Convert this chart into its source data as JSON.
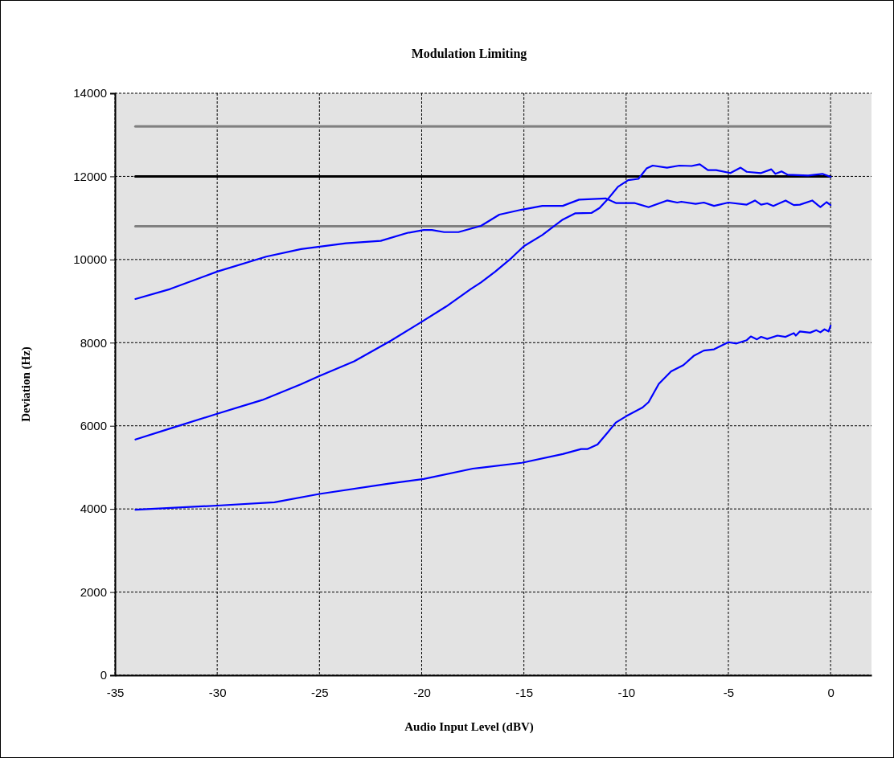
{
  "chart_data": {
    "type": "line",
    "title": "Modulation Limiting",
    "xlabel": "Audio Input Level (dBV)",
    "ylabel": "Deviation (Hz)",
    "xlim": [
      -35,
      2
    ],
    "xticks": [
      -35,
      -30,
      -25,
      -20,
      -15,
      -10,
      -5,
      0
    ],
    "ylim": [
      0,
      14000
    ],
    "yticks": [
      0,
      2000,
      4000,
      6000,
      8000,
      10000,
      12000,
      14000
    ],
    "grid": true,
    "marker": "none",
    "line_style": "solid",
    "series": [
      {
        "color": "#808080",
        "x": [
          -34,
          0
        ],
        "values": [
          13200,
          13200
        ]
      },
      {
        "color": "#000000",
        "x": [
          -34,
          0
        ],
        "values": [
          12000,
          12000
        ]
      },
      {
        "color": "#808080",
        "x": [
          -34,
          0
        ],
        "values": [
          10800,
          10800
        ]
      },
      {
        "color": "#0000ff",
        "x": [
          -34,
          -32.3,
          -30,
          -27.6,
          -25.9,
          -23.7,
          -22,
          -20.7,
          -19.9,
          -19.5,
          -18.9,
          -18.2,
          -17.1,
          -16.2,
          -15.1,
          -14.1,
          -13.1,
          -12.3,
          -11,
          -10.5,
          -9.6,
          -8.9,
          -8,
          -7.5,
          -7.3,
          -6.6,
          -6.2,
          -5.7,
          -5,
          -4.1,
          -3.7,
          -3.4,
          -3.1,
          -2.8,
          -2.2,
          -1.8,
          -1.5,
          -0.9,
          -0.5,
          -0.2,
          0
        ],
        "values": [
          9050,
          9290,
          9710,
          10070,
          10250,
          10390,
          10450,
          10640,
          10710,
          10710,
          10660,
          10660,
          10810,
          11080,
          11200,
          11290,
          11290,
          11440,
          11470,
          11360,
          11360,
          11260,
          11420,
          11370,
          11390,
          11340,
          11370,
          11290,
          11370,
          11320,
          11420,
          11320,
          11350,
          11290,
          11420,
          11310,
          11320,
          11420,
          11260,
          11380,
          11310
        ]
      },
      {
        "color": "#0000ff",
        "x": [
          -34,
          -32.4,
          -30,
          -27.8,
          -25.9,
          -25,
          -23.3,
          -21.5,
          -20,
          -18.8,
          -17.6,
          -17.1,
          -16.4,
          -15.6,
          -15,
          -14.1,
          -13.1,
          -12.5,
          -11.7,
          -11.3,
          -10.9,
          -10.4,
          -9.9,
          -9.4,
          -9,
          -8.7,
          -8,
          -7.4,
          -6.8,
          -6.4,
          -6,
          -5.6,
          -4.9,
          -4.4,
          -4.1,
          -3.4,
          -2.9,
          -2.7,
          -2.4,
          -2.1,
          -1.1,
          -0.4,
          0
        ],
        "values": [
          5670,
          5920,
          6290,
          6620,
          7000,
          7200,
          7550,
          8050,
          8500,
          8870,
          9290,
          9450,
          9710,
          10040,
          10320,
          10590,
          10960,
          11110,
          11120,
          11240,
          11450,
          11750,
          11910,
          11940,
          12190,
          12260,
          12210,
          12260,
          12250,
          12290,
          12150,
          12150,
          12080,
          12210,
          12110,
          12080,
          12170,
          12060,
          12120,
          12040,
          12020,
          12060,
          11990
        ]
      },
      {
        "color": "#0000ff",
        "x": [
          -34,
          -30,
          -27.2,
          -25,
          -21.6,
          -19.9,
          -17.5,
          -17.1,
          -15.1,
          -13.1,
          -12.2,
          -11.9,
          -11.4,
          -10.9,
          -10.5,
          -10,
          -9.2,
          -8.9,
          -8.4,
          -7.8,
          -7.2,
          -6.7,
          -6.2,
          -5.7,
          -5,
          -4.6,
          -4.1,
          -3.9,
          -3.6,
          -3.4,
          -3.1,
          -2.6,
          -2.2,
          -1.8,
          -1.7,
          -1.5,
          -1,
          -0.7,
          -0.5,
          -0.3,
          -0.1,
          0
        ],
        "values": [
          3980,
          4080,
          4160,
          4360,
          4610,
          4720,
          4970,
          4990,
          5110,
          5320,
          5440,
          5440,
          5550,
          5840,
          6080,
          6230,
          6440,
          6570,
          7010,
          7310,
          7460,
          7680,
          7810,
          7840,
          8010,
          7980,
          8060,
          8150,
          8080,
          8140,
          8090,
          8170,
          8140,
          8230,
          8170,
          8270,
          8240,
          8300,
          8250,
          8320,
          8270,
          8410
        ]
      }
    ]
  }
}
